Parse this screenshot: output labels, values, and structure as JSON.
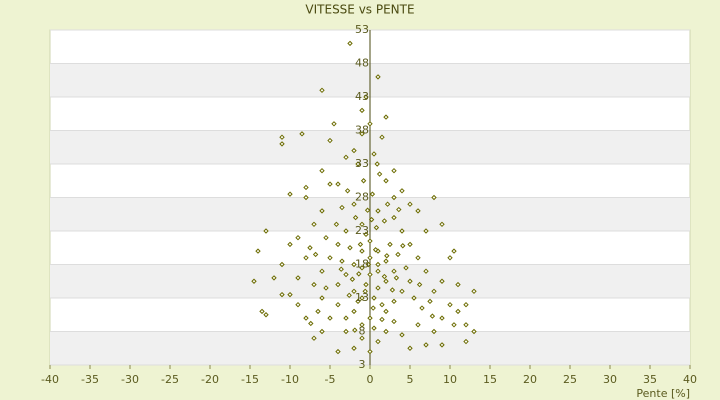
{
  "chart_data": {
    "type": "scatter",
    "title": "VITESSE vs PENTE",
    "x_label": "Pente [%]",
    "color": "#6b6b00",
    "grid": true,
    "xlim": [
      -40,
      40
    ],
    "xticks": [
      -40,
      -35,
      -30,
      -25,
      -20,
      -15,
      -10,
      -5,
      0,
      5,
      10,
      15,
      20,
      25,
      30,
      35,
      40
    ],
    "ylim": [
      3,
      53
    ],
    "yticks": [
      3,
      8,
      13,
      18,
      23,
      28,
      33,
      38,
      43,
      48,
      53
    ],
    "x": [
      -2.5,
      1,
      -6,
      -1,
      2,
      -4.5,
      -8.5,
      -11,
      -11,
      -5,
      -1,
      1.5,
      -3,
      0.5,
      -6,
      -1.5,
      3,
      -10,
      -8,
      -8,
      8,
      4,
      -4,
      2,
      -13,
      -14,
      -14.5,
      -13.5,
      -13,
      -11,
      -10,
      -9,
      -7,
      -4,
      -2,
      0,
      1,
      5,
      7,
      9,
      12,
      13,
      12,
      11,
      12,
      13,
      10,
      10.5,
      9,
      7,
      6,
      5,
      3,
      -2,
      -6,
      -7,
      -9,
      -11,
      -10,
      -8,
      -9,
      -8,
      -6,
      -5,
      -3,
      -1,
      2,
      4,
      6,
      8,
      9,
      10,
      8,
      9,
      7,
      6,
      5,
      4,
      3,
      1,
      -1,
      -3,
      -4,
      -5,
      -6,
      -7,
      -6,
      -4,
      -2,
      0,
      2,
      3,
      4,
      5,
      3,
      2,
      1,
      0,
      -1,
      -2,
      -3,
      -4,
      -2,
      -1,
      1,
      2,
      0,
      -1,
      1,
      0,
      -0.5,
      0.5,
      1.5,
      -1.5,
      -2.5,
      2.5,
      3.5,
      -3.5,
      -0.5,
      0.8,
      -1.8,
      1.8,
      -2.8,
      0.3,
      -0.8,
      1.2,
      -3.5,
      2.2,
      4.5,
      5.5,
      6.5,
      7.5,
      -5.5,
      -6.5,
      -7.5,
      -5.5,
      3,
      -3,
      0.5,
      -1,
      1.8,
      -0.2,
      0.4,
      -2.2,
      2.8,
      -1.2,
      1,
      -0.6,
      0.7,
      -1.4,
      2.1,
      -2.6,
      3.3,
      -3.6,
      0.2,
      -0.3,
      4.1,
      -4.2,
      1.5,
      -1.9,
      6.2,
      -6.8,
      7.8,
      -7.4,
      10.5,
      11,
      -12,
      3.6,
      -5,
      0.9,
      -2,
      0,
      -0.5
    ],
    "values": [
      51,
      46,
      44,
      41,
      40,
      39,
      37.5,
      37,
      36,
      36.5,
      37.5,
      37,
      34,
      34.5,
      32,
      33,
      32,
      28.5,
      28,
      29.5,
      28,
      29,
      30,
      30.5,
      23,
      20,
      15.5,
      11,
      10.5,
      13.5,
      13.5,
      12,
      7,
      5,
      5.5,
      5,
      6.5,
      5.5,
      6,
      6,
      6.5,
      8,
      9,
      11,
      12,
      14,
      19,
      20,
      24,
      23,
      26,
      27,
      28,
      27,
      26,
      24,
      22,
      18,
      21,
      19,
      16,
      10,
      8,
      10,
      8,
      7,
      8,
      7.5,
      9,
      8,
      10,
      12,
      14,
      15.5,
      17,
      19,
      21,
      23,
      25,
      26,
      24,
      23,
      21,
      19,
      17,
      15,
      13,
      12,
      11,
      10,
      11,
      12.5,
      14,
      15.5,
      17,
      18.5,
      20,
      21.5,
      20,
      18,
      16.5,
      15,
      14,
      13,
      14.5,
      15.5,
      16.5,
      17.5,
      18,
      19,
      15,
      13,
      12,
      12.5,
      20.5,
      21,
      19.5,
      18.5,
      22.5,
      23.5,
      25,
      24.5,
      29,
      28.5,
      30.5,
      31.5,
      26.5,
      27,
      17.5,
      13,
      11.5,
      12.5,
      14.5,
      11,
      20.5,
      22,
      9.5,
      10,
      8.5,
      9,
      16.2,
      18,
      11.5,
      15.8,
      14.2,
      21,
      17,
      14,
      20.2,
      16.6,
      19.3,
      13.4,
      16,
      17.3,
      24.7,
      26.1,
      20.8,
      24,
      9.8,
      8.2,
      15,
      19.5,
      10.3,
      9.2,
      9,
      15,
      16,
      26.2,
      30,
      33,
      35,
      39,
      43
    ]
  }
}
